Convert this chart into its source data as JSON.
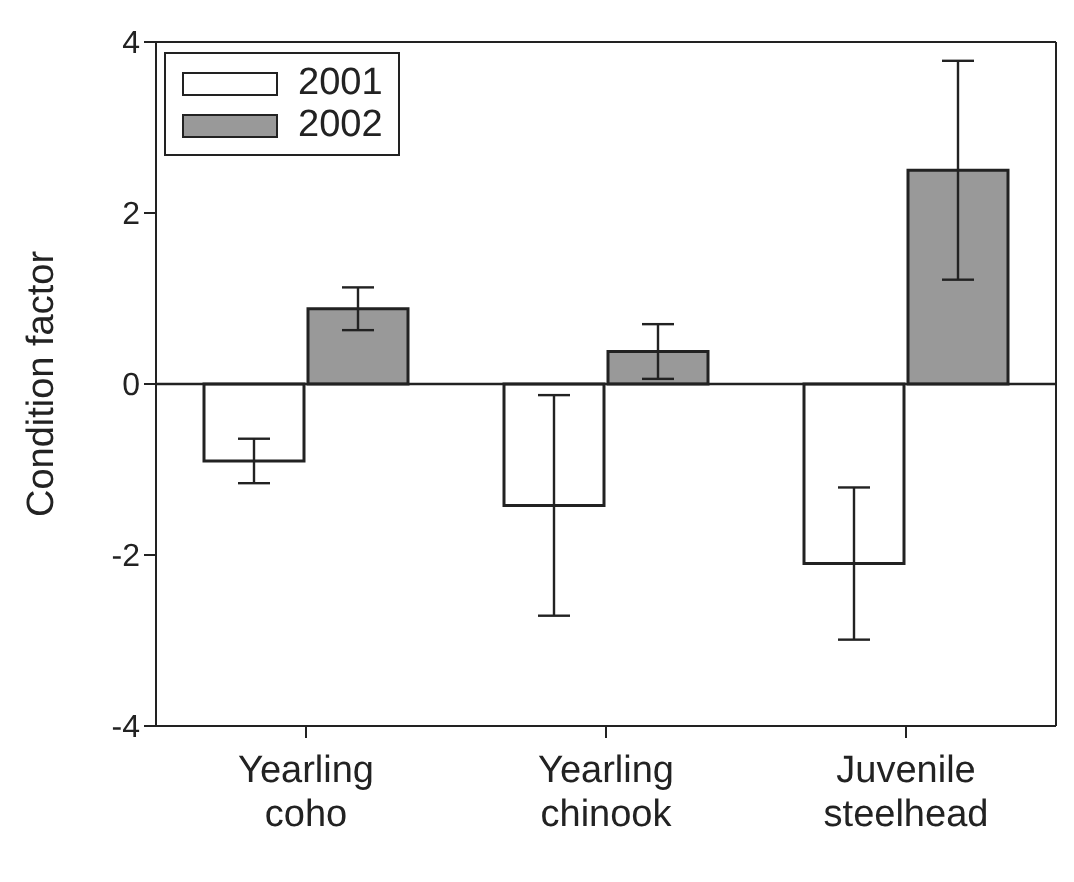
{
  "chart_data": {
    "type": "bar",
    "ylabel": "Condition factor",
    "categories": [
      "Yearling\ncoho",
      "Yearling\nchinook",
      "Juvenile\nsteelhead"
    ],
    "series": [
      {
        "name": "2001",
        "color": "#ffffff",
        "values": [
          -0.9,
          -1.42,
          -2.1
        ],
        "errors": [
          0.26,
          1.29,
          0.89
        ]
      },
      {
        "name": "2002",
        "color": "#999999",
        "values": [
          0.88,
          0.38,
          2.5
        ],
        "errors": [
          0.25,
          0.32,
          1.28
        ]
      }
    ],
    "ylim": [
      -4,
      4
    ],
    "yticks": [
      -4,
      -2,
      0,
      2,
      4
    ],
    "ref_lines": [
      {
        "axis": "y",
        "value": 0
      }
    ],
    "grid": false,
    "legend": "top left"
  }
}
